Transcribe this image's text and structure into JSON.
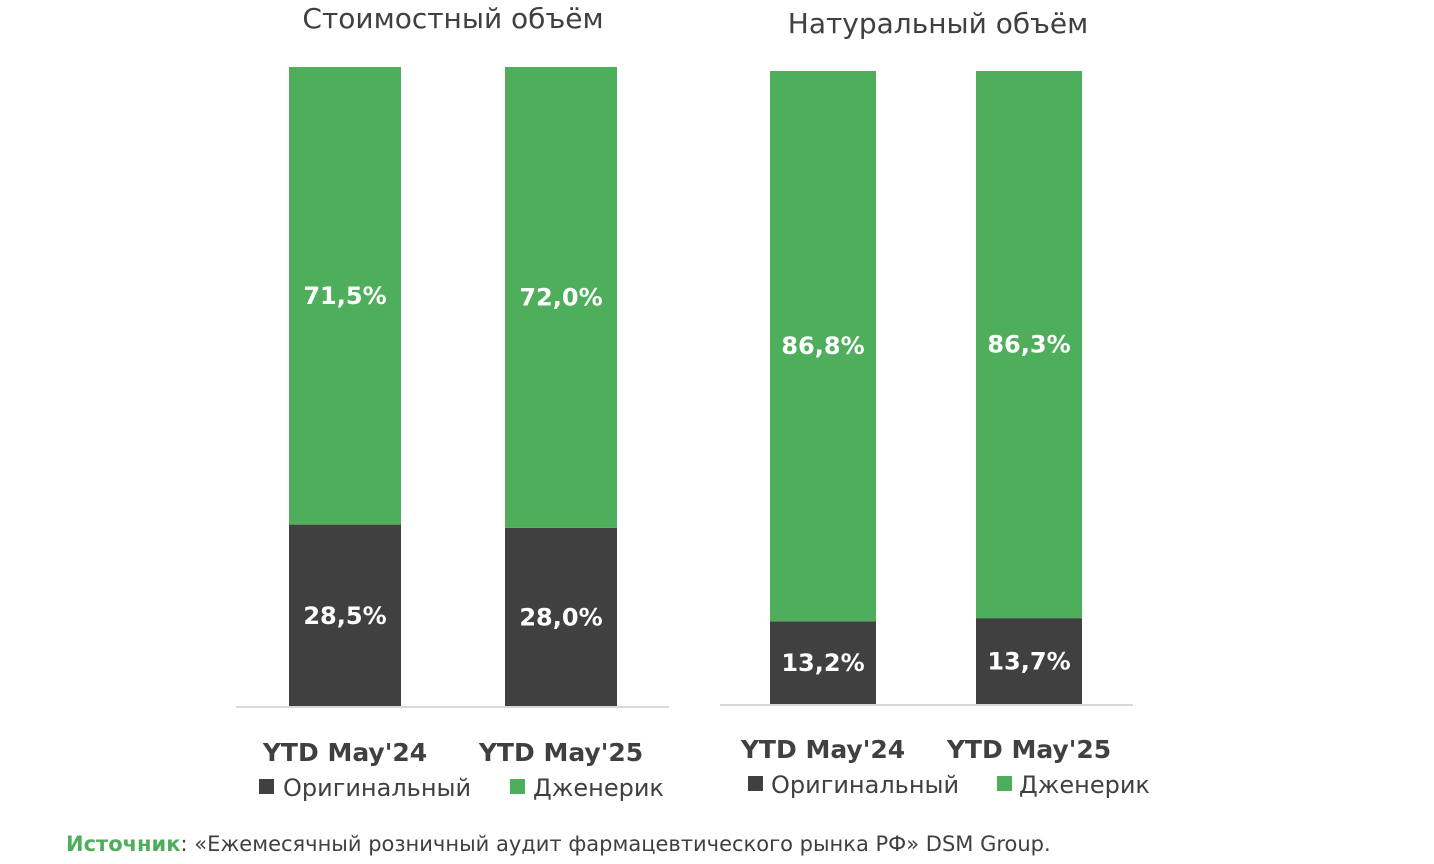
{
  "chart_data": [
    {
      "type": "bar",
      "stacked": true,
      "title": "Стоимостный объём",
      "categories": [
        "YTD May'24",
        "YTD May'25"
      ],
      "series": [
        {
          "name": "Оригинальный",
          "values": [
            28.5,
            28.0
          ],
          "labels": [
            "28,5%",
            "28,0%"
          ],
          "color": "#404040"
        },
        {
          "name": "Дженерик",
          "values": [
            71.5,
            72.0
          ],
          "labels": [
            "71,5%",
            "72,0%"
          ],
          "color": "#4fae5c"
        }
      ],
      "ylim": [
        0,
        100
      ],
      "grid": false,
      "legend": "bottom"
    },
    {
      "type": "bar",
      "stacked": true,
      "title": "Натуральный объём",
      "categories": [
        "YTD May'24",
        "YTD May'25"
      ],
      "series": [
        {
          "name": "Оригинальный",
          "values": [
            13.2,
            13.7
          ],
          "labels": [
            "13,2%",
            "13,7%"
          ],
          "color": "#404040"
        },
        {
          "name": "Дженерик",
          "values": [
            86.8,
            86.3
          ],
          "labels": [
            "86,8%",
            "86,3%"
          ],
          "color": "#4fae5c"
        }
      ],
      "ylim": [
        0,
        100
      ],
      "grid": false,
      "legend": "bottom"
    }
  ],
  "source": {
    "label": "Источник",
    "separator": ":",
    "text": " «Ежемесячный розничный аудит фармацевтического рынка РФ» DSM Group."
  }
}
